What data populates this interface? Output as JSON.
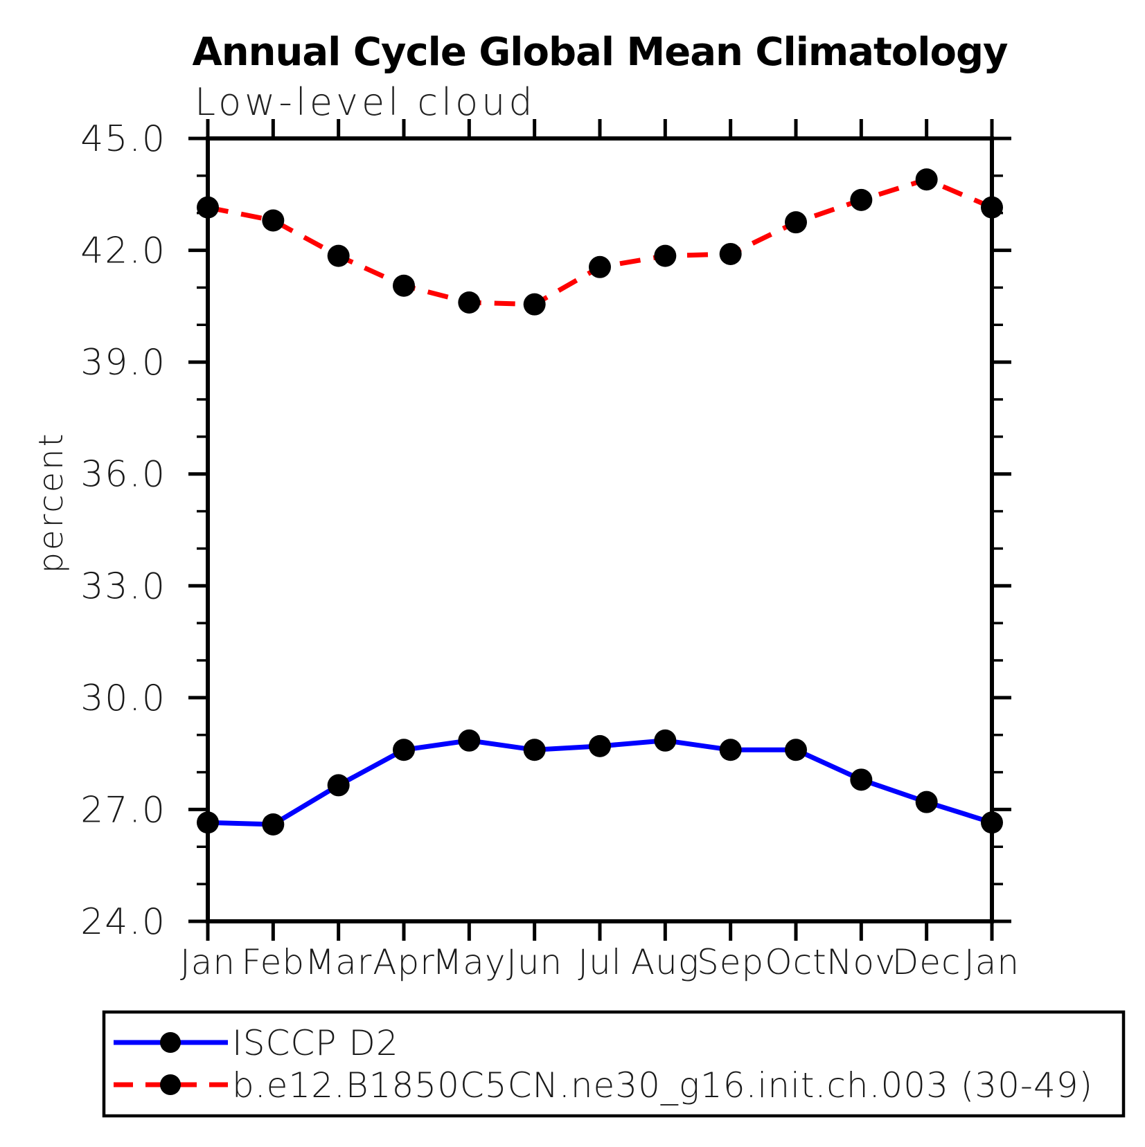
{
  "page": {
    "background": "#ffffff"
  },
  "chart_data": {
    "type": "line",
    "title": "Annual Cycle Global Mean Climatology",
    "subtitle": "Low-level cloud",
    "ylabel": "percent",
    "xlabel": "",
    "categories": [
      "Jan",
      "Feb",
      "Mar",
      "Apr",
      "May",
      "Jun",
      "Jul",
      "Aug",
      "Sep",
      "Oct",
      "Nov",
      "Dec",
      "Jan"
    ],
    "ylim": [
      24.0,
      45.0
    ],
    "ytick_major_step": 3.0,
    "ytick_minor_step": 1.0,
    "ytick_labels": [
      "24.0",
      "27.0",
      "30.0",
      "33.0",
      "36.0",
      "39.0",
      "42.0",
      "45.0"
    ],
    "grid": false,
    "legend_position": "bottom-left-box",
    "series": [
      {
        "id": "isccp-d2",
        "name": "ISCCP D2",
        "color": "#0000ff",
        "line_style": "solid",
        "marker": "filled-circle",
        "marker_color": "#000000",
        "values": [
          26.65,
          26.6,
          27.65,
          28.6,
          28.85,
          28.6,
          28.7,
          28.85,
          28.6,
          28.6,
          27.8,
          27.2,
          26.65
        ]
      },
      {
        "id": "model-b-e12",
        "name": "b.e12.B1850C5CN.ne30_g16.init.ch.003 (30-49)",
        "color": "#ff0000",
        "line_style": "dashed",
        "marker": "filled-circle",
        "marker_color": "#000000",
        "values": [
          43.15,
          42.8,
          41.85,
          41.05,
          40.6,
          40.55,
          41.55,
          41.85,
          41.9,
          42.75,
          43.35,
          43.9,
          43.15
        ]
      }
    ]
  },
  "colors": {
    "axis": "#000000",
    "text": "#1a1a1a",
    "background": "#ffffff"
  }
}
